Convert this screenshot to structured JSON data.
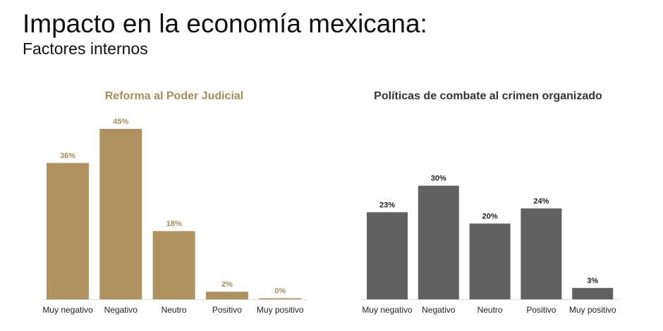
{
  "header": {
    "title": "Impacto en la economía mexicana:",
    "subtitle": "Factores internos"
  },
  "chart_data": [
    {
      "type": "bar",
      "title": "Reforma al Poder Judicial",
      "categories": [
        "Muy negativo",
        "Negativo",
        "Neutro",
        "Positivo",
        "Muy positivo"
      ],
      "values": [
        36,
        45,
        18,
        2,
        0
      ],
      "labels": [
        "36%",
        "45%",
        "18%",
        "2%",
        "0%"
      ],
      "unit": "%",
      "color": "#b09260",
      "xlabel": "",
      "ylabel": "",
      "ylim": [
        0,
        45
      ]
    },
    {
      "type": "bar",
      "title": "Políticas de combate al crimen organizado",
      "categories": [
        "Muy negativo",
        "Negativo",
        "Neutro",
        "Positivo",
        "Muy positivo"
      ],
      "values": [
        23,
        30,
        20,
        24,
        3
      ],
      "labels": [
        "23%",
        "30%",
        "20%",
        "24%",
        "3%"
      ],
      "unit": "%",
      "color": "#616161",
      "xlabel": "",
      "ylabel": "",
      "ylim": [
        0,
        45
      ]
    }
  ]
}
